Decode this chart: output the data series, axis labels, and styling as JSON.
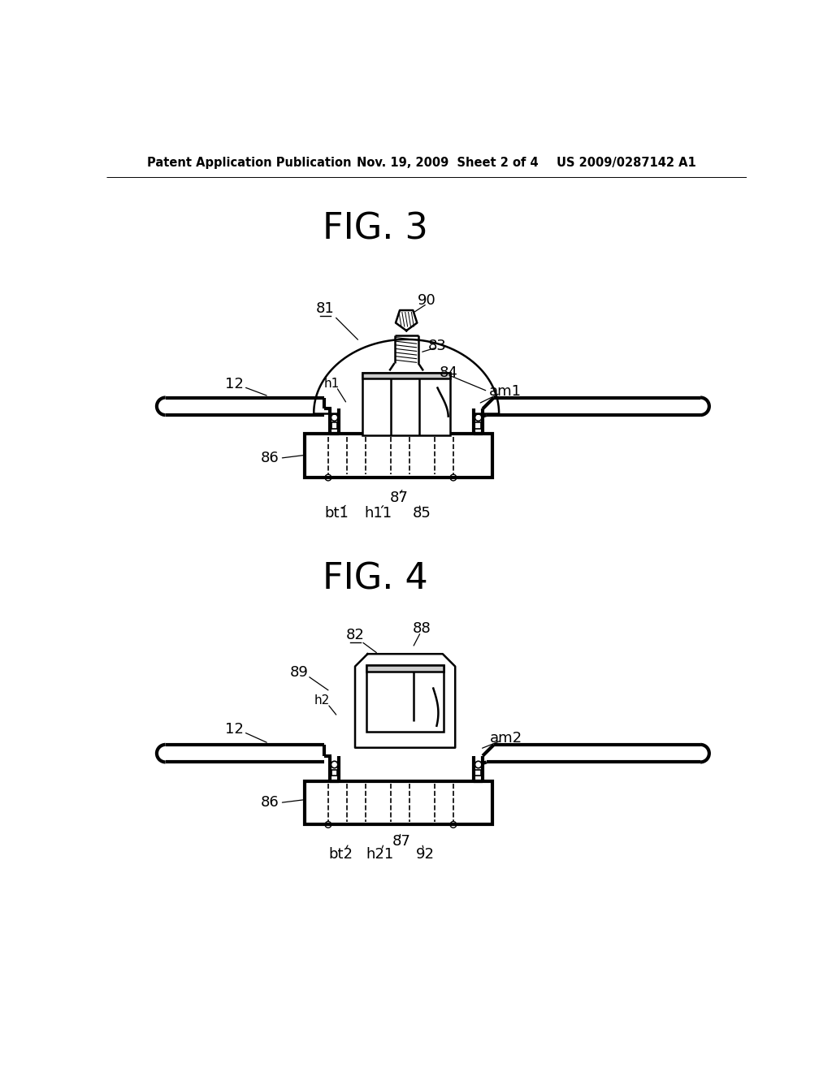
{
  "bg_color": "#ffffff",
  "header_left": "Patent Application Publication",
  "header_mid": "Nov. 19, 2009  Sheet 2 of 4",
  "header_right": "US 2009/0287142 A1",
  "fig3_title": "FIG. 3",
  "fig4_title": "FIG. 4",
  "line_color": "#000000",
  "lw": 1.8,
  "tlw": 3.0,
  "label_fs": 13
}
